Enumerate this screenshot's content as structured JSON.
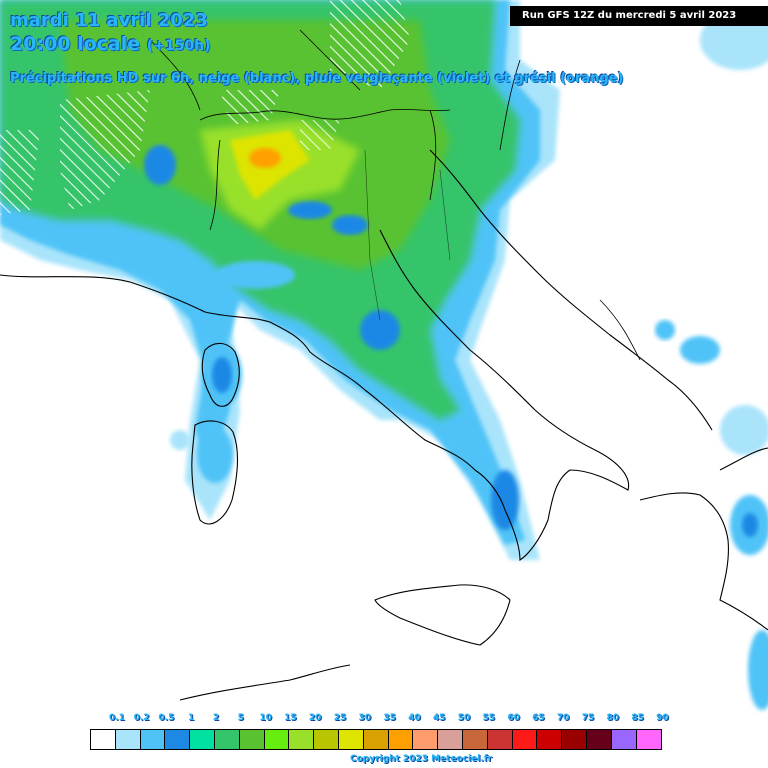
{
  "header": {
    "date": "mardi 11 avril 2023",
    "time": "20:00 locale",
    "offset": "(+150h)",
    "subtitle": "Précipitations HD sur 6h, neige (blanc), pluie verglaçante (violet) et grésil (orange)"
  },
  "run_label": "Run GFS 12Z du mercredi 5 avril 2023",
  "legend": {
    "labels": [
      "0.1",
      "0.2",
      "0.5",
      "1",
      "2",
      "5",
      "10",
      "15",
      "20",
      "25",
      "30",
      "35",
      "40",
      "45",
      "50",
      "55",
      "60",
      "65",
      "70",
      "75",
      "80",
      "85",
      "90"
    ],
    "colors": [
      "#ffffff",
      "#a9e4fb",
      "#4fc3f7",
      "#1e88e5",
      "#00e0a0",
      "#34c46a",
      "#59c231",
      "#66ee11",
      "#99e02a",
      "#b8c500",
      "#dde400",
      "#d9a200",
      "#ffa000",
      "#ff9c6e",
      "#d9a09a",
      "#c8673a",
      "#cc3333",
      "#ff1a1a",
      "#cc0000",
      "#990000",
      "#66001a",
      "#9966ff",
      "#ff66ff"
    ]
  },
  "copyright": "Copyright 2023 Meteociel.fr"
}
